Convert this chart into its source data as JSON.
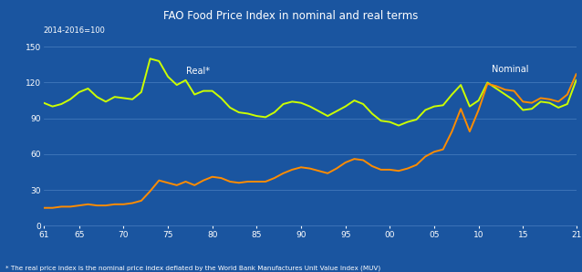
{
  "title": "FAO Food Price Index in nominal and real terms",
  "subtitle": "2014-2016=100",
  "footnote": "* The real price index is the nominal price index deflated by the World Bank Manufactures Unit Value Index (MUV)",
  "background_color": "#1a55a0",
  "title_bg_color": "#1e2e7a",
  "plot_bg_color": "#1a55a0",
  "ylim": [
    0,
    155
  ],
  "yticks": [
    0,
    30,
    60,
    90,
    120,
    150
  ],
  "grid_color": "#4a7fc0",
  "real_label": "Real*",
  "nominal_label": "Nominal",
  "real_color": "#CCFF00",
  "nominal_color": "#FF8C00",
  "real_x": [
    1961,
    1962,
    1963,
    1964,
    1965,
    1966,
    1967,
    1968,
    1969,
    1970,
    1971,
    1972,
    1973,
    1974,
    1975,
    1976,
    1977,
    1978,
    1979,
    1980,
    1981,
    1982,
    1983,
    1984,
    1985,
    1986,
    1987,
    1988,
    1989,
    1990,
    1991,
    1992,
    1993,
    1994,
    1995,
    1996,
    1997,
    1998,
    1999,
    2000,
    2001,
    2002,
    2003,
    2004,
    2005,
    2006,
    2007,
    2008,
    2009,
    2010,
    2011,
    2012,
    2013,
    2014,
    2015,
    2016,
    2017,
    2018,
    2019,
    2020,
    2021
  ],
  "real_y": [
    103,
    100,
    102,
    106,
    112,
    115,
    108,
    104,
    108,
    107,
    106,
    112,
    140,
    138,
    125,
    118,
    122,
    110,
    113,
    113,
    107,
    99,
    95,
    94,
    92,
    91,
    95,
    102,
    104,
    103,
    100,
    96,
    92,
    96,
    100,
    105,
    102,
    94,
    88,
    87,
    84,
    87,
    89,
    97,
    100,
    101,
    110,
    118,
    100,
    105,
    120,
    115,
    110,
    105,
    97,
    98,
    104,
    103,
    99,
    102,
    122
  ],
  "nominal_y": [
    15,
    15,
    16,
    16,
    17,
    18,
    17,
    17,
    18,
    18,
    19,
    21,
    29,
    38,
    36,
    34,
    37,
    34,
    38,
    41,
    40,
    37,
    36,
    37,
    37,
    37,
    40,
    44,
    47,
    49,
    48,
    46,
    44,
    48,
    53,
    56,
    55,
    50,
    47,
    47,
    46,
    48,
    51,
    58,
    62,
    64,
    79,
    98,
    79,
    97,
    119,
    117,
    114,
    113,
    104,
    103,
    107,
    106,
    104,
    110,
    127
  ],
  "x_tick_positions": [
    1961,
    1965,
    1970,
    1975,
    1980,
    1985,
    1990,
    1995,
    2000,
    2005,
    2010,
    2015,
    2021
  ],
  "x_tick_labels": [
    "61",
    "65",
    "70",
    "75",
    "80",
    "85",
    "90",
    "95",
    "00",
    "05",
    "10",
    "15",
    "21"
  ]
}
